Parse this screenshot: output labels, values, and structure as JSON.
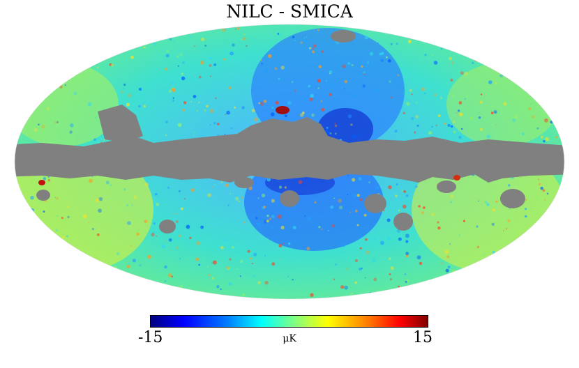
{
  "title": "NILC - SMICA",
  "colorbar": {
    "min_label": "-15",
    "max_label": "15",
    "unit_label": "μK",
    "min": -15,
    "max": 15,
    "colormap": [
      "#000080",
      "#0000ff",
      "#0080ff",
      "#00ffff",
      "#80ff80",
      "#ffff00",
      "#ff8000",
      "#ff0000",
      "#800000"
    ]
  },
  "mask_color": "#808080"
}
